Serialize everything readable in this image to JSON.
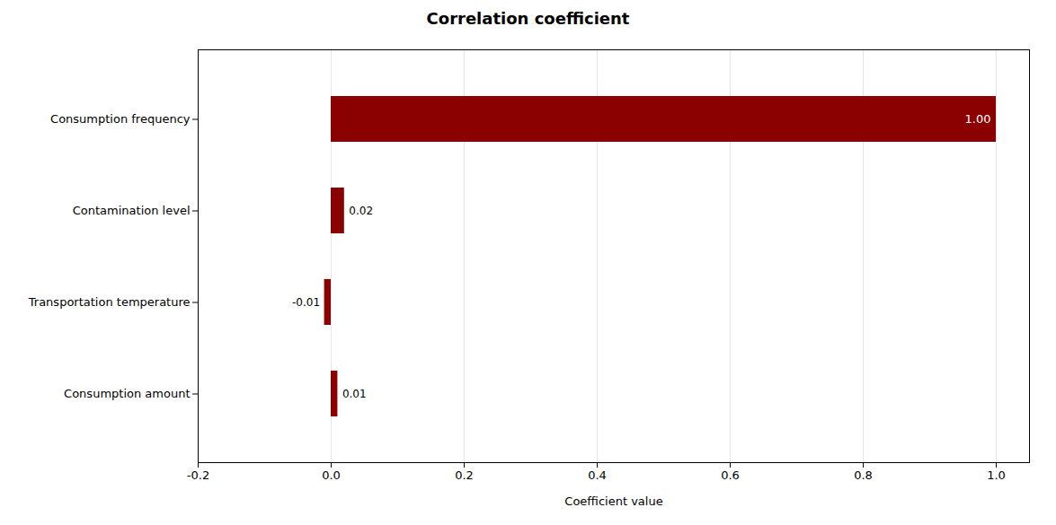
{
  "chart_data": {
    "type": "bar",
    "orientation": "horizontal",
    "title": "Correlation coefficient",
    "xlabel": "Coefficient value",
    "categories": [
      "Consumption amount",
      "Transportation temperature",
      "Contamination level",
      "Consumption frequency"
    ],
    "values": [
      0.01,
      -0.01,
      0.02,
      1.0
    ],
    "value_labels": [
      "0.01",
      "-0.01",
      "0.02",
      "1.00"
    ],
    "data_labels": true,
    "color": "#8B0000",
    "xlim": [
      -0.2,
      1.05
    ],
    "xticks": [
      -0.2,
      {
        "value": 0.0,
        "label": "0.0"
      },
      0.2,
      0.4,
      0.6,
      0.8,
      {
        "value": 1.0,
        "label": "1.0"
      }
    ],
    "grid": true
  }
}
